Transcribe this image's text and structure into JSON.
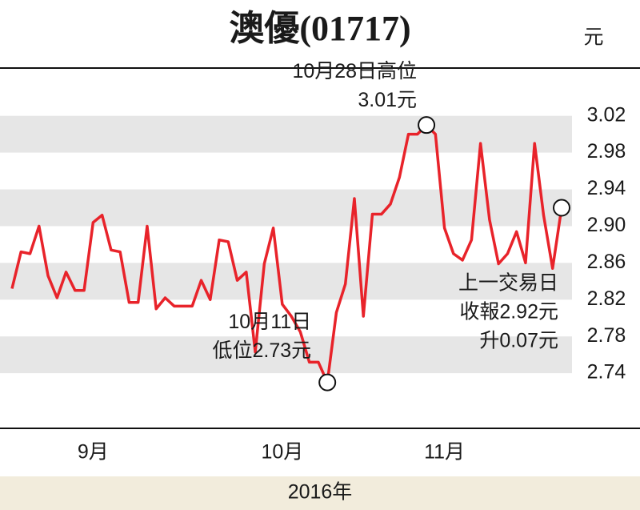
{
  "chart_data": {
    "type": "line",
    "title": "澳優(01717)",
    "y_unit": "元",
    "x_label": "2016年",
    "categories": [
      null,
      null,
      null,
      null,
      null,
      null,
      null,
      null,
      null,
      "9月",
      null,
      null,
      null,
      null,
      null,
      null,
      null,
      null,
      null,
      null,
      null,
      null,
      null,
      null,
      null,
      null,
      null,
      null,
      null,
      null,
      "10月",
      null,
      null,
      null,
      null,
      null,
      null,
      null,
      null,
      null,
      null,
      null,
      null,
      null,
      null,
      null,
      null,
      null,
      "11月",
      null,
      null,
      null,
      null,
      null,
      null,
      null,
      null,
      null,
      null,
      null,
      null,
      null
    ],
    "series": [
      {
        "name": "澳優",
        "color": "#e8232a",
        "values": [
          2.832,
          2.872,
          2.87,
          2.9,
          2.846,
          2.822,
          2.85,
          2.83,
          2.83,
          2.904,
          2.912,
          2.874,
          2.872,
          2.817,
          2.817,
          2.9,
          2.81,
          2.822,
          2.813,
          2.813,
          2.813,
          2.841,
          2.82,
          2.885,
          2.883,
          2.841,
          2.85,
          2.763,
          2.859,
          2.898,
          2.815,
          2.802,
          2.785,
          2.752,
          2.752,
          2.73,
          2.806,
          2.837,
          2.93,
          2.802,
          2.913,
          2.913,
          2.924,
          2.953,
          3.0,
          3.0,
          3.01,
          3.0,
          2.898,
          2.87,
          2.863,
          2.885,
          2.99,
          2.907,
          2.859,
          2.87,
          2.894,
          2.86,
          2.99,
          2.912,
          2.854,
          2.92
        ]
      }
    ],
    "ylim": [
      2.68,
      3.072
    ],
    "yticks": [
      2.74,
      2.78,
      2.82,
      2.86,
      {
        "value": 2.9,
        "label": "2.90"
      },
      2.94,
      2.98,
      3.02
    ],
    "grid": "bands",
    "band_color": "#e6e6e6",
    "annotations": [
      [
        "10月28日高位",
        "3.01元"
      ],
      [
        "10月11日",
        "低位2.73元"
      ],
      [
        "上一交易日",
        "收報2.92元",
        "升0.07元"
      ]
    ]
  }
}
